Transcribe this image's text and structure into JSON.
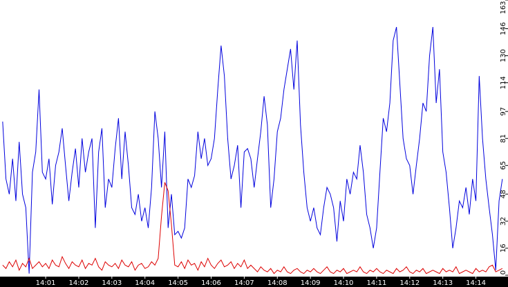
{
  "chart_data": {
    "type": "line",
    "x": [
      -0.3,
      -0.2,
      -0.1,
      0.0,
      0.1,
      0.2,
      0.3,
      0.4,
      0.5,
      0.6,
      0.7,
      0.8,
      0.9,
      1.0,
      1.1,
      1.2,
      1.3,
      1.4,
      1.5,
      1.6,
      1.7,
      1.8,
      1.9,
      2.0,
      2.1,
      2.2,
      2.3,
      2.4,
      2.5,
      2.6,
      2.7,
      2.8,
      2.9,
      3.0,
      3.1,
      3.2,
      3.3,
      3.4,
      3.5,
      3.6,
      3.7,
      3.8,
      3.9,
      4.0,
      4.1,
      4.2,
      4.3,
      4.4,
      4.5,
      4.6,
      4.7,
      4.8,
      4.9,
      5.0,
      5.1,
      5.2,
      5.3,
      5.4,
      5.5,
      5.6,
      5.7,
      5.8,
      5.9,
      6.0,
      6.1,
      6.2,
      6.3,
      6.4,
      6.5,
      6.6,
      6.7,
      6.8,
      6.9,
      7.0,
      7.1,
      7.2,
      7.3,
      7.4,
      7.5,
      7.6,
      7.7,
      7.8,
      7.9,
      8.0,
      8.1,
      8.2,
      8.3,
      8.4,
      8.5,
      8.6,
      8.7,
      8.8,
      8.9,
      9.0,
      9.1,
      9.2,
      9.3,
      9.4,
      9.5,
      9.6,
      9.7,
      9.8,
      9.9,
      10.0,
      10.1,
      10.2,
      10.3,
      10.4,
      10.5,
      10.6,
      10.7,
      10.8,
      10.9,
      11.0,
      11.1,
      11.2,
      11.3,
      11.4,
      11.5,
      11.6,
      11.7,
      11.8,
      11.9,
      12.0,
      12.1,
      12.2,
      12.3,
      12.4,
      12.5,
      12.6,
      12.7,
      12.8,
      12.9,
      13.0,
      13.1,
      13.2,
      13.3,
      13.4,
      13.5,
      13.6,
      13.7,
      13.8,
      13.9,
      14.0,
      14.1,
      14.2,
      14.3,
      14.4,
      14.5,
      14.6,
      14.7,
      14.8
    ],
    "series": [
      {
        "color": "#0000dd",
        "values": [
          91,
          57,
          48,
          69,
          44,
          79,
          48,
          40,
          1,
          61,
          73,
          110,
          61,
          57,
          69,
          42,
          65,
          73,
          87,
          65,
          44,
          61,
          75,
          52,
          81,
          61,
          73,
          81,
          28,
          73,
          87,
          40,
          57,
          52,
          75,
          93,
          57,
          85,
          65,
          40,
          36,
          48,
          32,
          40,
          28,
          52,
          97,
          81,
          52,
          85,
          28,
          48,
          24,
          26,
          22,
          28,
          57,
          52,
          59,
          85,
          69,
          81,
          65,
          69,
          81,
          110,
          136,
          118,
          81,
          57,
          65,
          77,
          40,
          73,
          75,
          69,
          52,
          69,
          85,
          106,
          89,
          40,
          57,
          85,
          93,
          110,
          122,
          134,
          110,
          139,
          89,
          61,
          40,
          32,
          40,
          28,
          24,
          40,
          52,
          48,
          40,
          20,
          44,
          32,
          57,
          48,
          61,
          57,
          77,
          61,
          36,
          28,
          16,
          28,
          61,
          93,
          85,
          102,
          139,
          147,
          114,
          81,
          69,
          65,
          48,
          65,
          81,
          102,
          97,
          130,
          147,
          102,
          122,
          73,
          61,
          40,
          16,
          28,
          44,
          40,
          52,
          36,
          57,
          44,
          118,
          81,
          57,
          40,
          24,
          3,
          44,
          57
        ]
      },
      {
        "color": "#dd0000",
        "values": [
          6,
          4,
          8,
          5,
          9,
          3,
          7,
          5,
          10,
          4,
          6,
          8,
          5,
          7,
          4,
          9,
          6,
          5,
          11,
          7,
          4,
          8,
          6,
          5,
          9,
          4,
          7,
          6,
          10,
          5,
          3,
          8,
          6,
          5,
          7,
          4,
          9,
          6,
          5,
          8,
          3,
          6,
          7,
          4,
          5,
          8,
          6,
          10,
          35,
          55,
          50,
          30,
          6,
          5,
          8,
          4,
          9,
          6,
          7,
          3,
          8,
          5,
          10,
          6,
          4,
          7,
          9,
          5,
          6,
          8,
          4,
          7,
          5,
          9,
          4,
          6,
          4,
          2,
          5,
          3,
          2,
          4,
          1,
          3,
          2,
          5,
          2,
          1,
          3,
          4,
          2,
          1,
          3,
          2,
          4,
          2,
          1,
          3,
          5,
          2,
          1,
          3,
          2,
          4,
          1,
          2,
          3,
          2,
          5,
          2,
          1,
          3,
          2,
          4,
          2,
          1,
          3,
          2,
          1,
          4,
          2,
          3,
          5,
          2,
          1,
          3,
          2,
          4,
          1,
          2,
          3,
          2,
          1,
          4,
          2,
          3,
          2,
          5,
          1,
          2,
          3,
          2,
          1,
          4,
          2,
          3,
          2,
          5,
          6,
          2,
          3,
          4
        ]
      }
    ],
    "xlim": [
      -0.38,
      14.97
    ],
    "xticks": [
      {
        "value": 1,
        "label": "14:01"
      },
      {
        "value": 2,
        "label": "14:02"
      },
      {
        "value": 3,
        "label": "14:03"
      },
      {
        "value": 4,
        "label": "14:04"
      },
      {
        "value": 5,
        "label": "14:05"
      },
      {
        "value": 6,
        "label": "14:06"
      },
      {
        "value": 7,
        "label": "14:07"
      },
      {
        "value": 8,
        "label": "14:08"
      },
      {
        "value": 9,
        "label": "14:09"
      },
      {
        "value": 10,
        "label": "14:10"
      },
      {
        "value": 11,
        "label": "14:11"
      },
      {
        "value": 12,
        "label": "14:12"
      },
      {
        "value": 13,
        "label": "14:13"
      },
      {
        "value": 14,
        "label": "14:14"
      }
    ],
    "ylim": [
      0,
      163
    ],
    "yticks": [
      0,
      16,
      32,
      48,
      65,
      81,
      97,
      114,
      130,
      146,
      163
    ]
  }
}
